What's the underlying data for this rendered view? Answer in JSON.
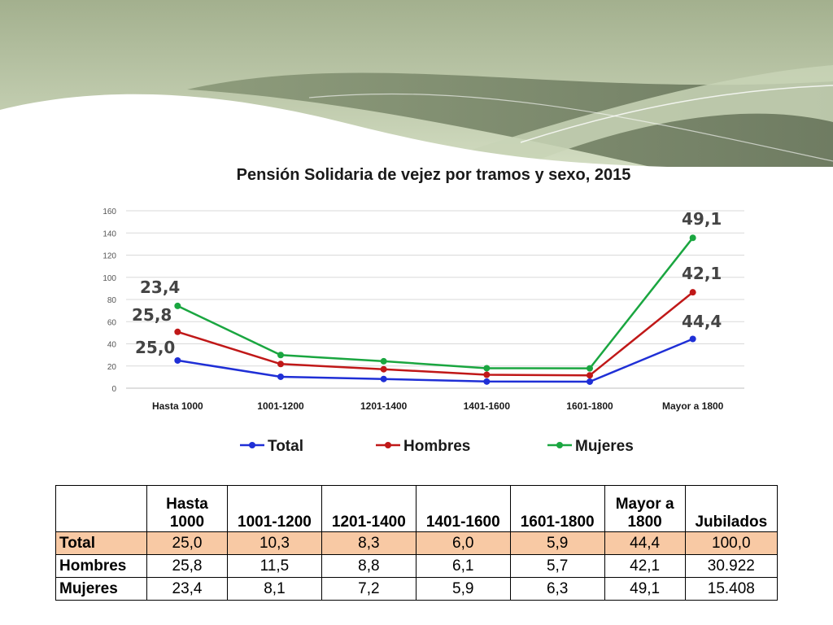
{
  "banner_colors": {
    "light": "#c5d2b2",
    "mid": "#9bab86",
    "dark": "#7f8c72",
    "line": "#ffffff"
  },
  "chart_data": {
    "type": "line",
    "title": "Pensión Solidaria de vejez por tramos y sexo, 2015",
    "categories": [
      "Hasta 1000",
      "1001-1200",
      "1201-1400",
      "1401-1600",
      "1601-1800",
      "Mayor a 1800"
    ],
    "ylim": [
      0,
      160
    ],
    "yticks": [
      "0",
      "20",
      "40",
      "60",
      "80",
      "100",
      "120",
      "140",
      "160"
    ],
    "grid": true,
    "legend_position": "bottom",
    "series": [
      {
        "name": "Total",
        "color": "#1f2fd6",
        "values": [
          25.0,
          10.3,
          8.3,
          6.0,
          5.9,
          44.4
        ]
      },
      {
        "name": "Hombres",
        "color": "#c01818",
        "values": [
          50.8,
          21.8,
          17.1,
          12.1,
          11.6,
          86.5
        ]
      },
      {
        "name": "Mujeres",
        "color": "#1aa640",
        "values": [
          74.2,
          29.9,
          24.3,
          18.0,
          17.9,
          135.6
        ]
      }
    ],
    "annotations": [
      {
        "text": "23,4",
        "series": "Mujeres",
        "category": "Hasta 1000"
      },
      {
        "text": "25,8",
        "series": "Hombres",
        "category": "Hasta 1000"
      },
      {
        "text": "25,0",
        "series": "Total",
        "category": "Hasta 1000"
      },
      {
        "text": "49,1",
        "series": "Mujeres",
        "category": "Mayor a 1800"
      },
      {
        "text": "42,1",
        "series": "Hombres",
        "category": "Mayor a 1800"
      },
      {
        "text": "44,4",
        "series": "Total",
        "category": "Mayor a 1800"
      }
    ]
  },
  "table": {
    "headers": [
      "",
      "Hasta 1000",
      "1001-1200",
      "1201-1400",
      "1401-1600",
      "1601-1800",
      "Mayor a 1800",
      "Jubilados"
    ],
    "highlight_color": "#f8c9a4",
    "rows": [
      {
        "label": "Total",
        "values": [
          "25,0",
          "10,3",
          "8,3",
          "6,0",
          "5,9",
          "44,4",
          "100,0"
        ]
      },
      {
        "label": "Hombres",
        "values": [
          "25,8",
          "11,5",
          "8,8",
          "6,1",
          "5,7",
          "42,1",
          "30.922"
        ]
      },
      {
        "label": "Mujeres",
        "values": [
          "23,4",
          "8,1",
          "7,2",
          "5,9",
          "6,3",
          "49,1",
          "15.408"
        ]
      }
    ]
  }
}
